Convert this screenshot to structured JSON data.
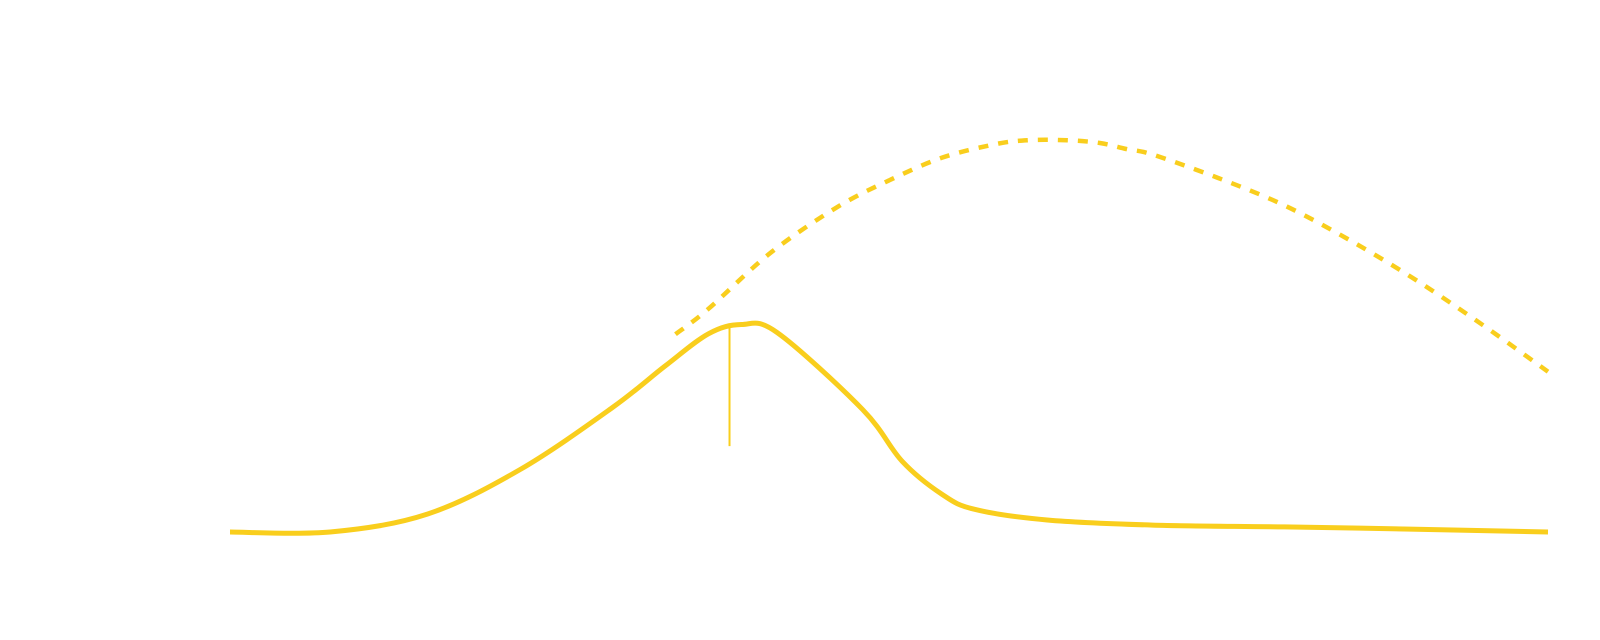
{
  "chart_data": {
    "type": "line",
    "title": "",
    "xlabel": "",
    "ylabel": "",
    "xlim": [
      0,
      100
    ],
    "ylim": [
      0,
      100
    ],
    "grid": false,
    "legend": "none",
    "series": [
      {
        "style": "solid",
        "color": "#F9CE1D",
        "x": [
          0,
          7.6,
          15,
          22,
          29,
          33,
          36.3,
          38.8,
          41.5,
          48,
          51,
          54,
          56.5,
          62,
          70,
          80,
          90,
          100
        ],
        "y": [
          0,
          0,
          3.9,
          13.5,
          26.9,
          35.9,
          42.9,
          44.9,
          43.2,
          26.5,
          15.3,
          8.2,
          4.9,
          2.6,
          1.5,
          1.1,
          0.6,
          0
        ]
      },
      {
        "style": "dashed",
        "color": "#F9CE1D",
        "x": [
          33.8,
          36.3,
          41,
          46,
          50,
          54,
          58,
          60.5,
          63.5,
          66,
          68,
          70,
          75,
          80,
          85,
          90,
          95,
          100
        ],
        "y": [
          42.8,
          48.3,
          60.4,
          70.2,
          76.1,
          81,
          83.9,
          84.8,
          84.8,
          84.2,
          82.9,
          81.7,
          76.6,
          70.7,
          63.1,
          54.5,
          44.9,
          34.7
        ]
      }
    ],
    "marker": {
      "x": 37.9,
      "y_from": 18.6,
      "y_to": 44.9,
      "color": "#F9CE1D"
    }
  }
}
